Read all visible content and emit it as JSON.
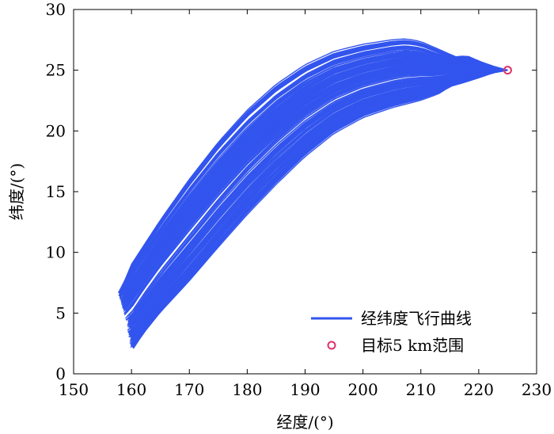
{
  "chart_data": {
    "type": "line",
    "title": "",
    "xlabel": "经度/(°)",
    "ylabel": "纬度/(°)",
    "xlim": [
      150,
      230
    ],
    "ylim": [
      0,
      30
    ],
    "xticks": [
      150,
      160,
      170,
      180,
      190,
      200,
      210,
      220,
      230
    ],
    "yticks": [
      0,
      5,
      10,
      15,
      20,
      25,
      30
    ],
    "grid": false,
    "legend_position": "bottom-right",
    "series": [
      {
        "name": "经纬度飞行曲线",
        "color": "#3355ee",
        "description_count": 200,
        "upper_envelope": {
          "x": [
            158.0,
            160,
            165,
            170,
            175,
            180,
            185,
            190,
            195,
            200,
            205,
            207.5,
            210,
            213,
            216,
            218,
            220,
            222.5,
            225
          ],
          "y": [
            6.7,
            9.0,
            12.6,
            15.9,
            18.9,
            21.5,
            23.6,
            25.2,
            26.3,
            26.9,
            27.3,
            27.4,
            27.2,
            26.6,
            26.0,
            26.1,
            25.7,
            25.3,
            25.0
          ]
        },
        "lower_envelope": {
          "x": [
            160.2,
            162,
            165,
            170,
            175,
            180,
            185,
            190,
            195,
            200,
            205,
            210,
            213,
            215,
            218,
            220,
            222.5,
            225
          ],
          "y": [
            2.0,
            3.3,
            5.1,
            7.7,
            10.5,
            13.2,
            15.7,
            18.0,
            19.9,
            21.2,
            22.0,
            22.6,
            23.1,
            23.7,
            24.1,
            24.4,
            24.8,
            25.0
          ]
        },
        "start_x_range": [
          158.0,
          160.2
        ],
        "end_point": [
          225,
          25
        ]
      },
      {
        "name": "目标5 km范围",
        "type": "scatter",
        "marker": "circle",
        "color": "#e0306a",
        "x": [
          225
        ],
        "y": [
          25
        ]
      }
    ]
  }
}
